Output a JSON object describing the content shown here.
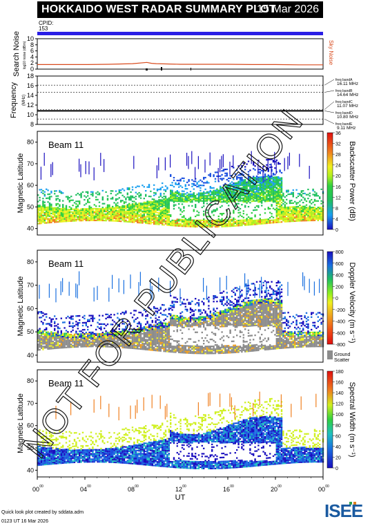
{
  "header": {
    "title": "HOKKAIDO WEST RADAR SUMMARY PLOT",
    "date": "15 Mar 2026",
    "cpid_label": "CPID:",
    "cpid_value": "153"
  },
  "footer": {
    "credit": "Quick look plot created by sddata.adm",
    "time": "0123 UT 16 Mar 2026",
    "logo_text": "ISEE"
  },
  "watermark": "NOT FOR PUBLICATION",
  "colors": {
    "cpid_bar": "#2a1ee6",
    "noise": "#d84a1c",
    "ground_scatter": "#8c8c8c"
  },
  "chart_data": [
    {
      "type": "line",
      "name": "noise",
      "ylabel": "Search Noise",
      "ylabel_sub": "log10 noise (dBm)",
      "legend": "Sky Noise",
      "ylim": [
        0,
        10
      ],
      "yticks": [
        "0",
        "2",
        "4",
        "6",
        "8",
        "10"
      ],
      "x": [
        0,
        2,
        4,
        6,
        8,
        9.2,
        9.6,
        10,
        12,
        14,
        16,
        18,
        20,
        22,
        24
      ],
      "values": [
        1.5,
        1.5,
        1.5,
        1.6,
        1.8,
        2.2,
        1.9,
        1.8,
        1.6,
        1.6,
        1.6,
        1.5,
        1.5,
        1.4,
        1.4
      ]
    },
    {
      "type": "line",
      "name": "frequency",
      "ylabel": "Frequency",
      "ylabel_sub": "(MHz)",
      "ylim": [
        8,
        18
      ],
      "yticks": [
        "8",
        "10",
        "12",
        "14",
        "16",
        "18"
      ],
      "bands": [
        {
          "label": "freq bandA",
          "freq": "16.11 MHz",
          "value": 16.11
        },
        {
          "label": "freq bandB",
          "freq": "14.64 MHz",
          "value": 14.64
        },
        {
          "label": "freq bandC",
          "freq": "11.07 MHz",
          "value": 11.07
        },
        {
          "label": "freq bandD",
          "freq": "10.80 MHz",
          "value": 10.8
        },
        {
          "label": "freq bandE",
          "freq": "9.11 MHz",
          "value": 9.11
        }
      ],
      "operating_freq": 10.8
    },
    {
      "type": "heatmap",
      "name": "power",
      "beam_label": "Beam 11",
      "ylabel": "Magnetic Latitude",
      "yticks": [
        "40",
        "50",
        "60",
        "70",
        "80"
      ],
      "ylim": [
        37,
        85
      ],
      "colorbar_label": "Backscatter Power (dB)",
      "colorbar_ticks": [
        "0",
        "4",
        "8",
        "12",
        "16",
        "20",
        "24",
        "28",
        "32",
        "36"
      ]
    },
    {
      "type": "heatmap",
      "name": "velocity",
      "beam_label": "Beam 11",
      "ylabel": "Magnetic Latitude",
      "yticks": [
        "40",
        "50",
        "60",
        "70",
        "80"
      ],
      "ylim": [
        37,
        85
      ],
      "colorbar_label": "Doppler Velocity (m s⁻¹)",
      "colorbar_ticks": [
        "-800",
        "-600",
        "-400",
        "-200",
        "0",
        "200",
        "400",
        "600",
        "800"
      ],
      "ground_label": "Ground",
      "ground_label2": "Scatter"
    },
    {
      "type": "heatmap",
      "name": "width",
      "beam_label": "Beam 11",
      "ylabel": "Magnetic Latitude",
      "yticks": [
        "40",
        "50",
        "60",
        "70",
        "80"
      ],
      "ylim": [
        37,
        85
      ],
      "colorbar_label": "Spectral Width (m s⁻¹)",
      "colorbar_ticks": [
        "0",
        "20",
        "40",
        "60",
        "80",
        "100",
        "120",
        "140",
        "160",
        "180"
      ]
    }
  ],
  "x_axis": {
    "label": "UT",
    "ticks": [
      {
        "hh": "00",
        "mm": "00"
      },
      {
        "hh": "04",
        "mm": "00"
      },
      {
        "hh": "08",
        "mm": "00"
      },
      {
        "hh": "12",
        "mm": "00"
      },
      {
        "hh": "16",
        "mm": "00"
      },
      {
        "hh": "20",
        "mm": "00"
      },
      {
        "hh": "00",
        "mm": "00"
      }
    ]
  }
}
